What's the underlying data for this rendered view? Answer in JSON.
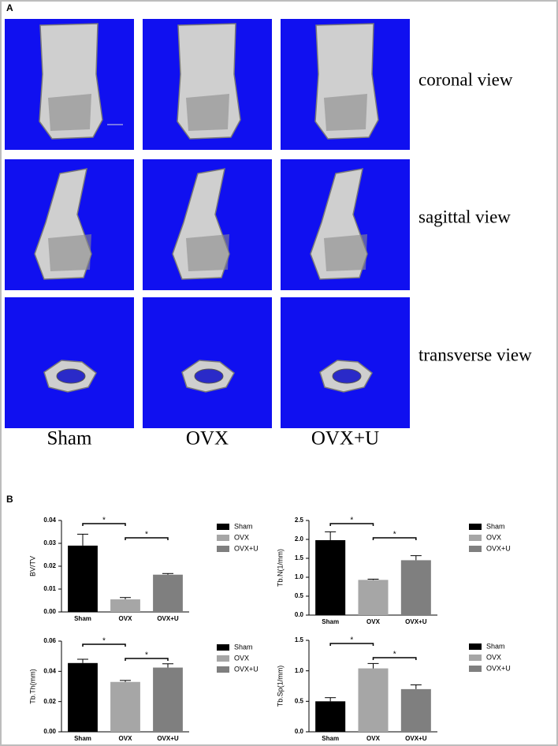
{
  "panel_a": {
    "label": "A",
    "views": [
      "coronal view",
      "sagittal view",
      "transverse view"
    ],
    "groups": [
      "Sham",
      "OVX",
      "OVX+U"
    ]
  },
  "panel_b": {
    "label": "B"
  },
  "chart_data": [
    {
      "type": "bar",
      "ylabel": "BV/TV",
      "categories": [
        "Sham",
        "OVX",
        "OVX+U"
      ],
      "values": [
        0.029,
        0.0055,
        0.0163
      ],
      "errors": [
        0.005,
        0.0008,
        0.0005
      ],
      "colors": [
        "#000000",
        "#a6a6a6",
        "#7f7f7f"
      ],
      "ylim": [
        0,
        0.04
      ],
      "yticks": [
        {
          "value": 0,
          "label": "0.00"
        },
        0.01,
        0.02,
        0.03,
        0.04
      ],
      "annotations": [
        "*",
        "*"
      ]
    },
    {
      "type": "bar",
      "ylabel": "Tb.N(1/mm)",
      "categories": [
        "Sham",
        "OVX",
        "OVX+U"
      ],
      "values": [
        1.98,
        0.93,
        1.45
      ],
      "errors": [
        0.22,
        0.02,
        0.12
      ],
      "colors": [
        "#000000",
        "#a6a6a6",
        "#7f7f7f"
      ],
      "ylim": [
        0,
        2.5
      ],
      "yticks": [
        {
          "value": 0,
          "label": "0.0"
        },
        0.5,
        {
          "value": 1,
          "label": "1.0"
        },
        1.5,
        {
          "value": 2,
          "label": "2.0"
        },
        2.5
      ],
      "annotations": [
        "*",
        "*"
      ]
    },
    {
      "type": "bar",
      "ylabel": "Tb.Th(mm)",
      "categories": [
        "Sham",
        "OVX",
        "OVX+U"
      ],
      "values": [
        0.0455,
        0.033,
        0.0425
      ],
      "errors": [
        0.0025,
        0.001,
        0.0025
      ],
      "colors": [
        "#000000",
        "#a6a6a6",
        "#7f7f7f"
      ],
      "ylim": [
        0,
        0.06
      ],
      "yticks": [
        {
          "value": 0,
          "label": "0.00"
        },
        0.02,
        0.04,
        0.06
      ],
      "annotations": [
        "*",
        "*"
      ]
    },
    {
      "type": "bar",
      "ylabel": "Tb.Sp(1/mm)",
      "categories": [
        "Sham",
        "OVX",
        "OVX+U"
      ],
      "values": [
        0.5,
        1.04,
        0.7
      ],
      "errors": [
        0.06,
        0.08,
        0.07
      ],
      "colors": [
        "#000000",
        "#a6a6a6",
        "#7f7f7f"
      ],
      "ylim": [
        0,
        1.5
      ],
      "yticks": [
        {
          "value": 0,
          "label": "0.0"
        },
        0.5,
        {
          "value": 1,
          "label": "1.0"
        },
        1.5
      ],
      "annotations": [
        "*",
        "*"
      ]
    }
  ]
}
